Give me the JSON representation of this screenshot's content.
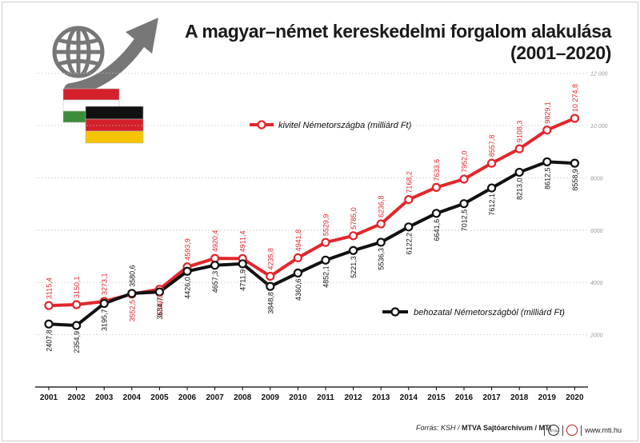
{
  "header": {
    "title_line1": "A magyar–német kereskedelmi forgalom alakulása",
    "title_line2": "(2001–2020)"
  },
  "footer": {
    "source_prefix": "Forrás: KSH / ",
    "source_bold": "MTVA Sajtóarchívum / MTI",
    "logo1": "MTVA",
    "site": "www.mti.hu"
  },
  "colors": {
    "export": "#e2262b",
    "import": "#111111",
    "grid": "#c9c9c9",
    "hu_red": "#d4202a",
    "hu_green": "#3b8d3a",
    "de_gold": "#f5c500",
    "globe": "#777777"
  },
  "icons": [
    "globe-icon",
    "arrow-up-right-icon",
    "hungary-flag-icon",
    "germany-flag-icon"
  ],
  "chart_data": {
    "type": "line",
    "x": [
      "2001",
      "2002",
      "2003",
      "2004",
      "2005",
      "2006",
      "2007",
      "2008",
      "2009",
      "2010",
      "2011",
      "2012",
      "2013",
      "2014",
      "2015",
      "2016",
      "2017",
      "2018",
      "2019",
      "2020"
    ],
    "ylim": [
      0,
      12000
    ],
    "yticks": [
      "2000",
      "4000",
      "6000",
      "8000",
      "10 000",
      "12 000"
    ],
    "yticks_values": [
      2000,
      4000,
      6000,
      8000,
      10000,
      12000
    ],
    "grid": true,
    "series": [
      {
        "name": "kivitel Németországba (milliárd Ft)",
        "values": [
          3115.4,
          3150.1,
          3273.1,
          3552.5,
          3739.0,
          4593.9,
          4920.4,
          4911.4,
          4235.8,
          4941.8,
          5529.9,
          5785.0,
          6236.8,
          7168.2,
          7633.6,
          7952.0,
          8557.8,
          9108.3,
          9829.1,
          10274.8
        ],
        "labels": [
          "3115,4",
          "3150,1",
          "3273,1",
          "3552,5",
          "3739,0",
          "4593,9",
          "4920,4",
          "4911,4",
          "4235,8",
          "4941,8",
          "5529,9",
          "5785,0",
          "6236,8",
          "7168,2",
          "7633,6",
          "7952,0",
          "8557,8",
          "9108,3",
          "9829,1",
          "10 274,8"
        ]
      },
      {
        "name": "behozatal Németországból (milliárd Ft)",
        "values": [
          2407.8,
          2354.9,
          3195.7,
          3580.6,
          3634.7,
          4426.0,
          4657.3,
          4711.9,
          3848.8,
          4360.6,
          4852.1,
          5221.3,
          5536.3,
          6122.2,
          6641.6,
          7012.5,
          7612.1,
          8213.0,
          8612.5,
          8558.9
        ],
        "labels": [
          "2407,8",
          "2354,9",
          "3195,7",
          "3580,6",
          "3634,7",
          "4426,0",
          "4657,3",
          "4711,9",
          "3848,8",
          "4360,6",
          "4852,1",
          "5221,3",
          "5536,3",
          "6122,2",
          "6641,6",
          "7012,5",
          "7612,1",
          "8213,0",
          "8612,5",
          "8558,9"
        ]
      }
    ]
  }
}
